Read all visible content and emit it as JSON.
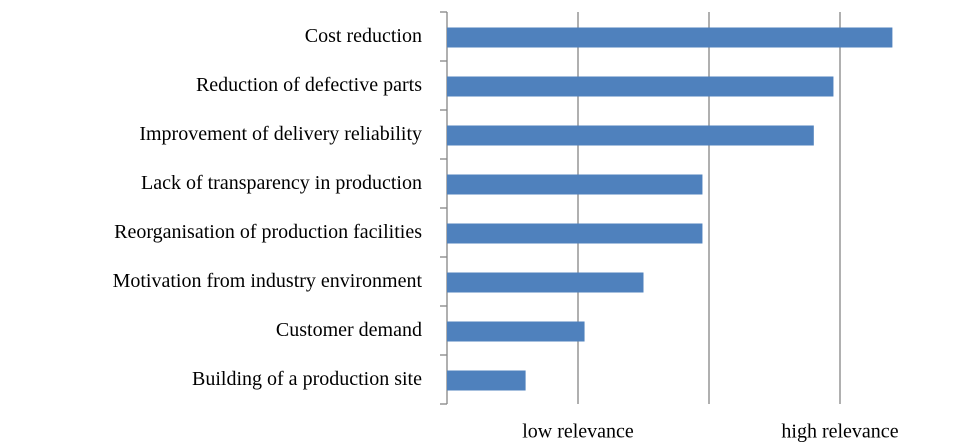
{
  "chart_data": {
    "type": "hbar",
    "categories": [
      "Cost reduction",
      "Reduction of defective parts",
      "Improvement of delivery reliability",
      "Lack of transparency in production",
      "Reorganisation of production facilities",
      "Motivation from industry environment",
      "Customer demand",
      "Building of a production site"
    ],
    "values": [
      3.4,
      2.95,
      2.8,
      1.95,
      1.95,
      1.5,
      1.05,
      0.6
    ],
    "color": "#4f81bd",
    "xlim": [
      0,
      3.5
    ],
    "xticks": [
      {
        "value": 1,
        "label": "low relevance"
      },
      {
        "value": 2,
        "label": null
      },
      {
        "value": 3,
        "label": "high relevance"
      }
    ],
    "grid": true
  }
}
